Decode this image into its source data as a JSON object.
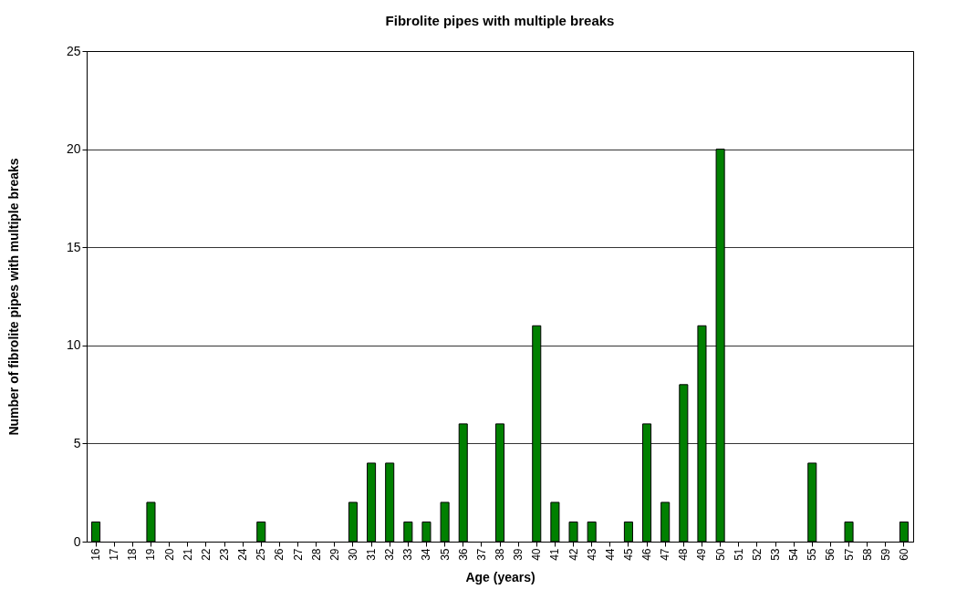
{
  "chart_data": {
    "type": "bar",
    "title": "Fibrolite pipes with multiple breaks",
    "xlabel": "Age (years)",
    "ylabel": "Number of fibrolite pipes with multiple breaks",
    "categories": [
      "16",
      "17",
      "18",
      "19",
      "20",
      "21",
      "22",
      "23",
      "24",
      "25",
      "26",
      "27",
      "28",
      "29",
      "30",
      "31",
      "32",
      "33",
      "34",
      "35",
      "36",
      "37",
      "38",
      "39",
      "40",
      "41",
      "42",
      "43",
      "44",
      "45",
      "46",
      "47",
      "48",
      "49",
      "50",
      "51",
      "52",
      "53",
      "54",
      "55",
      "56",
      "57",
      "58",
      "59",
      "60"
    ],
    "values": [
      1,
      0,
      0,
      2,
      0,
      0,
      0,
      0,
      0,
      1,
      0,
      0,
      0,
      0,
      2,
      4,
      4,
      1,
      1,
      2,
      6,
      0,
      6,
      0,
      11,
      2,
      1,
      1,
      0,
      1,
      6,
      2,
      8,
      11,
      20,
      0,
      0,
      0,
      0,
      4,
      0,
      1,
      0,
      0,
      1
    ],
    "color": "#008000",
    "ylim": [
      0,
      25
    ],
    "yticks": [
      0,
      5,
      10,
      15,
      20,
      25
    ],
    "grid": "y",
    "legend": false
  }
}
